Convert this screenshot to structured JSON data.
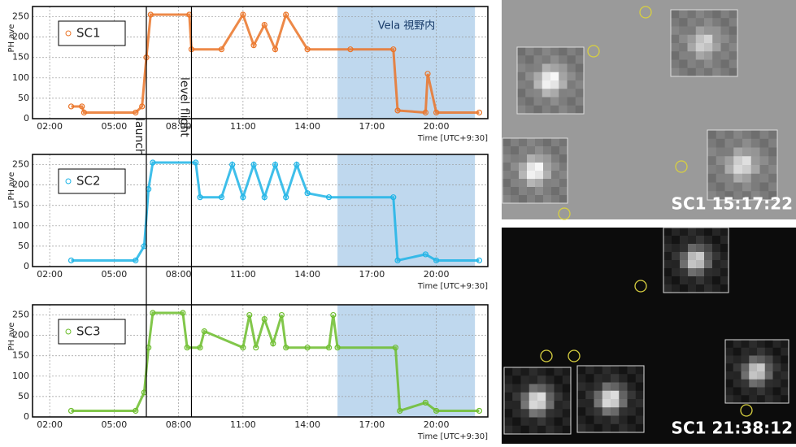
{
  "chart_data": [
    {
      "type": "line",
      "y_label": "PH ave",
      "x_label": "Time [UTC+9:30]",
      "legend_box": true,
      "xlim": [
        1.2,
        22.4
      ],
      "ylim": [
        0,
        275
      ],
      "xticks": [
        {
          "value": 2,
          "label": "02:00"
        },
        {
          "value": 5,
          "label": "05:00"
        },
        {
          "value": 8,
          "label": "08:00"
        },
        {
          "value": 11,
          "label": "11:00"
        },
        {
          "value": 14,
          "label": "14:00"
        },
        {
          "value": 17,
          "label": "17:00"
        },
        {
          "value": 20,
          "label": "20:00"
        }
      ],
      "yticks": [
        0,
        50,
        100,
        150,
        200,
        250
      ],
      "grid": true,
      "series": [
        {
          "name": "SC1",
          "color": "#ea7428",
          "x": [
            3.0,
            3.5,
            3.6,
            6.0,
            6.3,
            6.5,
            6.7,
            8.5,
            8.6,
            10.0,
            11.0,
            11.5,
            12.0,
            12.5,
            13.0,
            14.0,
            16.0,
            18.0,
            18.2,
            19.5,
            19.6,
            20.0,
            22.0
          ],
          "values": [
            30,
            30,
            15,
            15,
            30,
            150,
            255,
            255,
            170,
            170,
            255,
            180,
            230,
            170,
            255,
            170,
            170,
            170,
            20,
            15,
            110,
            15,
            15
          ]
        }
      ]
    },
    {
      "type": "line",
      "y_label": "PH ave",
      "x_label": "Time [UTC+9:30]",
      "legend_box": true,
      "xlim": [
        1.2,
        22.4
      ],
      "ylim": [
        0,
        275
      ],
      "xticks": [
        {
          "value": 2,
          "label": "02:00"
        },
        {
          "value": 5,
          "label": "05:00"
        },
        {
          "value": 8,
          "label": "08:00"
        },
        {
          "value": 11,
          "label": "11:00"
        },
        {
          "value": 14,
          "label": "14:00"
        },
        {
          "value": 17,
          "label": "17:00"
        },
        {
          "value": 20,
          "label": "20:00"
        }
      ],
      "yticks": [
        0,
        50,
        100,
        150,
        200,
        250
      ],
      "grid": true,
      "series": [
        {
          "name": "SC2",
          "color": "#1db4e6",
          "x": [
            3.0,
            6.0,
            6.4,
            6.6,
            6.8,
            8.8,
            9.0,
            10.0,
            10.5,
            11.0,
            11.5,
            12.0,
            12.5,
            13.0,
            13.5,
            14.0,
            15.0,
            18.0,
            18.2,
            19.5,
            20.0,
            22.0
          ],
          "values": [
            15,
            15,
            50,
            190,
            255,
            255,
            170,
            170,
            250,
            170,
            250,
            170,
            250,
            170,
            250,
            180,
            170,
            170,
            15,
            30,
            15,
            15
          ]
        }
      ]
    },
    {
      "type": "line",
      "y_label": "PH ave",
      "x_label": "Time [UTC+9:30]",
      "legend_box": true,
      "xlim": [
        1.2,
        22.4
      ],
      "ylim": [
        0,
        275
      ],
      "xticks": [
        {
          "value": 2,
          "label": "02:00"
        },
        {
          "value": 5,
          "label": "05:00"
        },
        {
          "value": 8,
          "label": "08:00"
        },
        {
          "value": 11,
          "label": "11:00"
        },
        {
          "value": 14,
          "label": "14:00"
        },
        {
          "value": 17,
          "label": "17:00"
        },
        {
          "value": 20,
          "label": "20:00"
        }
      ],
      "yticks": [
        0,
        50,
        100,
        150,
        200,
        250
      ],
      "grid": true,
      "series": [
        {
          "name": "SC3",
          "color": "#6cbd2c",
          "x": [
            3.0,
            6.0,
            6.4,
            6.6,
            6.8,
            8.2,
            8.4,
            9.0,
            9.2,
            11.0,
            11.3,
            11.6,
            12.0,
            12.4,
            12.8,
            13.0,
            14.0,
            15.0,
            15.2,
            15.4,
            18.1,
            18.3,
            19.5,
            20.0,
            22.0
          ],
          "values": [
            15,
            15,
            60,
            170,
            255,
            255,
            170,
            170,
            210,
            170,
            250,
            170,
            240,
            180,
            250,
            170,
            170,
            170,
            250,
            170,
            170,
            15,
            35,
            15,
            15
          ]
        }
      ]
    }
  ],
  "annotations": {
    "lines": [
      {
        "label": "launch",
        "x": 6.5
      },
      {
        "label": "level flight",
        "x": 8.6
      }
    ],
    "region": {
      "label": "Vela 視野内",
      "x0": 15.4,
      "x1": 21.8,
      "color": "#a9cbe8"
    }
  },
  "images": [
    {
      "caption": "SC1 15:17:22"
    },
    {
      "caption": "SC1 21:38:12"
    }
  ]
}
